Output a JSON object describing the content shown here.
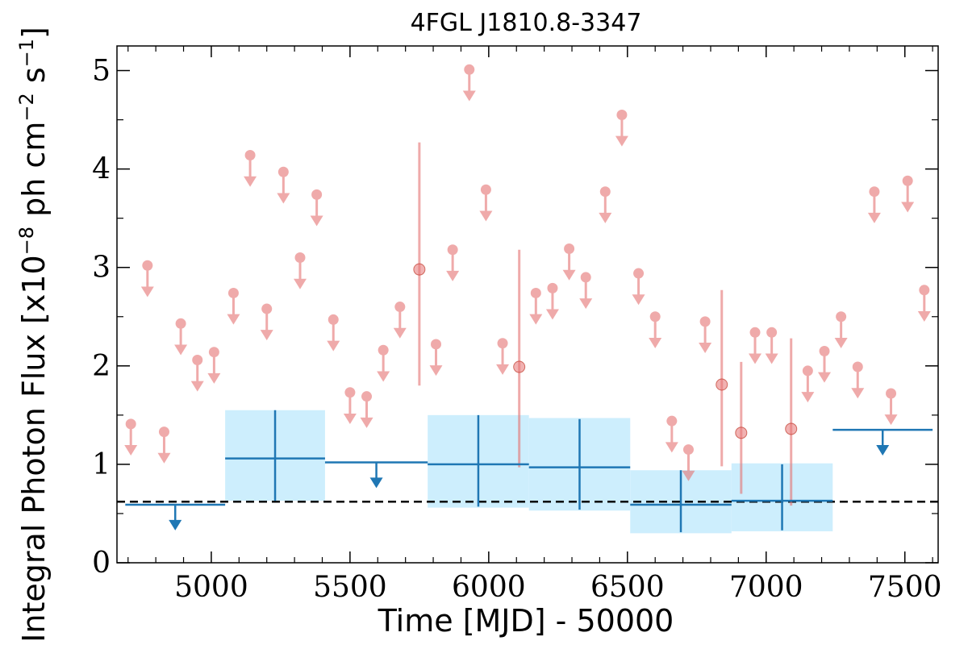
{
  "chart_data": {
    "type": "scatter",
    "title": "4FGL J1810.8-3347",
    "xlabel": "Time [MJD] - 50000",
    "ylabel": "Integral Photon Flux [x10",
    "ylabel_exp1": "−8",
    "ylabel_mid": " ph cm",
    "ylabel_exp2": "−2",
    "ylabel_mid2": " s",
    "ylabel_exp3": "−1",
    "ylabel_end": "]",
    "xlim": [
      4660,
      7620
    ],
    "ylim": [
      0,
      5.25
    ],
    "x_ticks": [
      5000,
      5500,
      6000,
      6500,
      7000,
      7500
    ],
    "y_ticks": [
      0,
      1,
      2,
      3,
      4,
      5
    ],
    "reference_line": {
      "y": 0.62,
      "style": "dashed",
      "color": "#000000"
    },
    "colors": {
      "short_bins": "#e57373",
      "long_bins": "#1f77b4",
      "band": "#cdeefd"
    },
    "short_bin_upper_limits": [
      {
        "x": 4710,
        "y": 1.41
      },
      {
        "x": 4770,
        "y": 3.02
      },
      {
        "x": 4830,
        "y": 1.33
      },
      {
        "x": 4890,
        "y": 2.43
      },
      {
        "x": 4950,
        "y": 2.06
      },
      {
        "x": 5010,
        "y": 2.14
      },
      {
        "x": 5080,
        "y": 2.74
      },
      {
        "x": 5140,
        "y": 4.14
      },
      {
        "x": 5200,
        "y": 2.58
      },
      {
        "x": 5260,
        "y": 3.97
      },
      {
        "x": 5320,
        "y": 3.1
      },
      {
        "x": 5380,
        "y": 3.74
      },
      {
        "x": 5440,
        "y": 2.47
      },
      {
        "x": 5500,
        "y": 1.73
      },
      {
        "x": 5560,
        "y": 1.69
      },
      {
        "x": 5620,
        "y": 2.16
      },
      {
        "x": 5680,
        "y": 2.6
      },
      {
        "x": 5810,
        "y": 2.22
      },
      {
        "x": 5870,
        "y": 3.18
      },
      {
        "x": 5930,
        "y": 5.01
      },
      {
        "x": 5990,
        "y": 3.79
      },
      {
        "x": 6050,
        "y": 2.23
      },
      {
        "x": 6170,
        "y": 2.74
      },
      {
        "x": 6230,
        "y": 2.79
      },
      {
        "x": 6290,
        "y": 3.19
      },
      {
        "x": 6350,
        "y": 2.9
      },
      {
        "x": 6420,
        "y": 3.77
      },
      {
        "x": 6480,
        "y": 4.55
      },
      {
        "x": 6540,
        "y": 2.94
      },
      {
        "x": 6600,
        "y": 2.5
      },
      {
        "x": 6660,
        "y": 1.44
      },
      {
        "x": 6720,
        "y": 1.15
      },
      {
        "x": 6780,
        "y": 2.45
      },
      {
        "x": 6960,
        "y": 2.34
      },
      {
        "x": 7020,
        "y": 2.34
      },
      {
        "x": 7150,
        "y": 1.95
      },
      {
        "x": 7210,
        "y": 2.15
      },
      {
        "x": 7270,
        "y": 2.5
      },
      {
        "x": 7330,
        "y": 1.99
      },
      {
        "x": 7390,
        "y": 3.77
      },
      {
        "x": 7450,
        "y": 1.72
      },
      {
        "x": 7510,
        "y": 3.88
      },
      {
        "x": 7570,
        "y": 2.77
      }
    ],
    "short_bin_detections": [
      {
        "x": 5750,
        "y": 2.98,
        "yerr_low": 1.8,
        "yerr_high": 4.27
      },
      {
        "x": 6110,
        "y": 1.99,
        "yerr_low": 0.97,
        "yerr_high": 3.18
      },
      {
        "x": 6840,
        "y": 1.81,
        "yerr_low": 0.98,
        "yerr_high": 2.77
      },
      {
        "x": 6910,
        "y": 1.32,
        "yerr_low": 0.7,
        "yerr_high": 2.04
      },
      {
        "x": 7090,
        "y": 1.36,
        "yerr_low": 0.58,
        "yerr_high": 2.28
      }
    ],
    "long_bin_detections": [
      {
        "x_low": 5050,
        "x_high": 5410,
        "y": 1.06,
        "y_low": 0.63,
        "y_high": 1.55,
        "band_low": 0.63,
        "band_high": 1.55
      },
      {
        "x_low": 5780,
        "x_high": 6145,
        "y": 1.0,
        "y_low": 0.57,
        "y_high": 1.5,
        "band_low": 0.56,
        "band_high": 1.5
      },
      {
        "x_low": 6145,
        "x_high": 6510,
        "y": 0.97,
        "y_low": 0.54,
        "y_high": 1.46,
        "band_low": 0.53,
        "band_high": 1.47
      },
      {
        "x_low": 6510,
        "x_high": 6875,
        "y": 0.59,
        "y_low": 0.31,
        "y_high": 0.94,
        "band_low": 0.3,
        "band_high": 0.94
      },
      {
        "x_low": 6875,
        "x_high": 7240,
        "y": 0.63,
        "y_low": 0.33,
        "y_high": 1.0,
        "band_low": 0.32,
        "band_high": 1.01
      }
    ],
    "long_bin_upper_limits": [
      {
        "x_low": 4690,
        "x_high": 5050,
        "y": 0.59
      },
      {
        "x_low": 5410,
        "x_high": 5780,
        "y": 1.02
      },
      {
        "x_low": 7240,
        "x_high": 7600,
        "y": 1.35
      }
    ]
  }
}
